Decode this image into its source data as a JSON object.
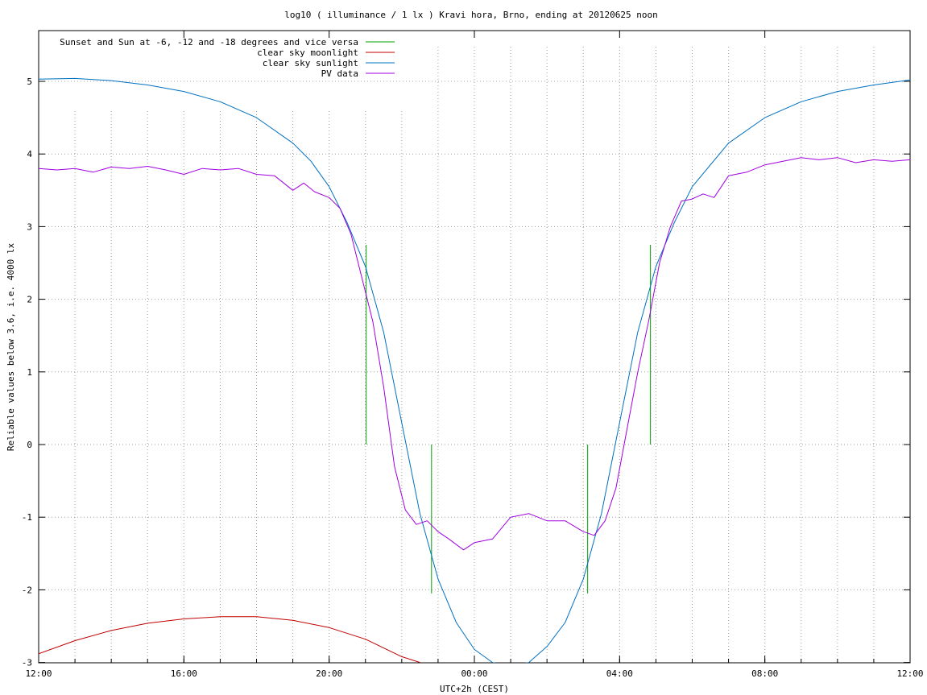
{
  "chart_data": {
    "type": "line",
    "title": "log10 ( illuminance / 1 lx ) Kravi hora, Brno, ending at 20120625 noon",
    "xlabel": "UTC+2h (CEST)",
    "ylabel": "Reliable values below 3.6, i.e. 4000 lx",
    "x_unit": "hours from 12:00 (day 1)",
    "xlim": [
      0,
      24
    ],
    "ylim": [
      -3,
      5.8
    ],
    "x_ticks": [
      "12:00",
      "16:00",
      "20:00",
      "00:00",
      "04:00",
      "08:00",
      "12:00"
    ],
    "y_ticks": [
      "-3",
      "-2",
      "-1",
      "0",
      "1",
      "2",
      "3",
      "4",
      "5"
    ],
    "grid": true,
    "legend_position": "top-left",
    "series": [
      {
        "name": "Sunset and Sun at -6, -12 and -18 degrees and vice versa",
        "color": "#00a000",
        "marks": [
          {
            "x": 9.02,
            "y_from": 0,
            "y_to": 2.75
          },
          {
            "x": 10.82,
            "y_from": -2.05,
            "y_to": 0
          },
          {
            "x": 15.12,
            "y_from": -2.05,
            "y_to": 0
          },
          {
            "x": 16.85,
            "y_from": 0,
            "y_to": 2.75
          }
        ]
      },
      {
        "name": "clear sky moonlight",
        "color": "#c00000",
        "x": [
          0,
          1,
          2,
          3,
          4,
          5,
          6,
          7,
          8,
          9,
          10,
          10.5
        ],
        "y": [
          -2.88,
          -2.7,
          -2.56,
          -2.46,
          -2.4,
          -2.37,
          -2.37,
          -2.42,
          -2.52,
          -2.68,
          -2.92,
          -3.0
        ]
      },
      {
        "name": "clear sky sunlight",
        "color": "#0070c0",
        "x": [
          0,
          1,
          2,
          3,
          4,
          5,
          6,
          7,
          7.5,
          8,
          8.5,
          9,
          9.5,
          10,
          10.5,
          11,
          11.5,
          12,
          12.5,
          13,
          13.5,
          14,
          14.5,
          15,
          15.5,
          16,
          16.5,
          17,
          17.5,
          18,
          19,
          20,
          21,
          22,
          23,
          24
        ],
        "y": [
          5.03,
          5.04,
          5.01,
          4.95,
          4.86,
          4.72,
          4.5,
          4.15,
          3.9,
          3.55,
          3.05,
          2.45,
          1.55,
          0.3,
          -0.95,
          -1.85,
          -2.45,
          -2.82,
          -3.0,
          -3.05,
          -3.0,
          -2.78,
          -2.45,
          -1.85,
          -0.95,
          0.3,
          1.55,
          2.45,
          3.05,
          3.55,
          4.15,
          4.5,
          4.72,
          4.86,
          4.95,
          5.02
        ]
      },
      {
        "name": "PV data",
        "color": "#a000e0",
        "x": [
          0,
          0.5,
          1,
          1.5,
          2,
          2.5,
          3,
          3.5,
          4,
          4.5,
          5,
          5.5,
          6,
          6.5,
          7,
          7.3,
          7.6,
          8,
          8.3,
          8.6,
          8.9,
          9.2,
          9.5,
          9.8,
          10.1,
          10.4,
          10.7,
          11,
          11.3,
          11.7,
          12,
          12.5,
          13,
          13.5,
          14,
          14.5,
          15,
          15.3,
          15.6,
          15.9,
          16.2,
          16.5,
          16.8,
          17.1,
          17.4,
          17.7,
          18,
          18.3,
          18.6,
          19,
          19.5,
          20,
          20.5,
          21,
          21.5,
          22,
          22.5,
          23,
          23.5,
          24
        ],
        "y": [
          3.8,
          3.78,
          3.8,
          3.75,
          3.82,
          3.8,
          3.83,
          3.78,
          3.72,
          3.8,
          3.78,
          3.8,
          3.72,
          3.7,
          3.5,
          3.6,
          3.48,
          3.4,
          3.25,
          2.9,
          2.3,
          1.7,
          0.8,
          -0.3,
          -0.9,
          -1.1,
          -1.05,
          -1.2,
          -1.3,
          -1.45,
          -1.35,
          -1.3,
          -1.0,
          -0.95,
          -1.05,
          -1.05,
          -1.2,
          -1.25,
          -1.05,
          -0.6,
          0.2,
          1.0,
          1.7,
          2.5,
          3.0,
          3.35,
          3.38,
          3.45,
          3.4,
          3.7,
          3.75,
          3.85,
          3.9,
          3.95,
          3.92,
          3.95,
          3.88,
          3.92,
          3.9,
          3.92
        ]
      }
    ]
  }
}
